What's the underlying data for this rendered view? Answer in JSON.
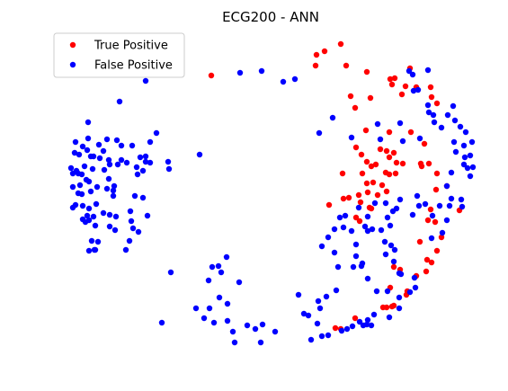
{
  "chart_data": {
    "type": "scatter",
    "title": "ECG200 - ANN",
    "xlabel": "",
    "ylabel": "",
    "axes_visible": false,
    "grid": false,
    "legend_position": "top-left",
    "series": [
      {
        "name": "True Positive",
        "color": "#ff0000",
        "points": [
          [
            235,
            84
          ],
          [
            352,
            61
          ],
          [
            361,
            57
          ],
          [
            379,
            49
          ],
          [
            351,
            73
          ],
          [
            385,
            73
          ],
          [
            408,
            80
          ],
          [
            434,
            88
          ],
          [
            439,
            87
          ],
          [
            436,
            94
          ],
          [
            456,
            76
          ],
          [
            451,
            96
          ],
          [
            463,
            97
          ],
          [
            479,
            97
          ],
          [
            390,
            107
          ],
          [
            412,
            109
          ],
          [
            447,
            105
          ],
          [
            480,
            108
          ],
          [
            486,
            115
          ],
          [
            395,
            120
          ],
          [
            407,
            145
          ],
          [
            396,
            164
          ],
          [
            433,
            147
          ],
          [
            457,
            147
          ],
          [
            472,
            160
          ],
          [
            423,
            166
          ],
          [
            402,
            172
          ],
          [
            430,
            168
          ],
          [
            408,
            180
          ],
          [
            418,
            183
          ],
          [
            413,
            185
          ],
          [
            429,
            192
          ],
          [
            433,
            175
          ],
          [
            438,
            170
          ],
          [
            441,
            181
          ],
          [
            440,
            193
          ],
          [
            433,
            194
          ],
          [
            448,
            182
          ],
          [
            381,
            193
          ],
          [
            403,
            193
          ],
          [
            408,
            204
          ],
          [
            415,
            203
          ],
          [
            409,
            214
          ],
          [
            420,
            217
          ],
          [
            430,
            213
          ],
          [
            399,
            217
          ],
          [
            382,
            221
          ],
          [
            388,
            220
          ],
          [
            401,
            225
          ],
          [
            413,
            232
          ],
          [
            425,
            206
          ],
          [
            411,
            231
          ],
          [
            468,
            182
          ],
          [
            477,
            182
          ],
          [
            486,
            193
          ],
          [
            485,
            211
          ],
          [
            497,
            207
          ],
          [
            511,
            234
          ],
          [
            479,
            233
          ],
          [
            476,
            245
          ],
          [
            484,
            247
          ],
          [
            491,
            264
          ],
          [
            467,
            269
          ],
          [
            486,
            279
          ],
          [
            475,
            289
          ],
          [
            480,
            292
          ],
          [
            438,
            297
          ],
          [
            445,
            300
          ],
          [
            463,
            307
          ],
          [
            474,
            302
          ],
          [
            434,
            320
          ],
          [
            453,
            324
          ],
          [
            452,
            328
          ],
          [
            438,
            340
          ],
          [
            426,
            342
          ],
          [
            430,
            342
          ],
          [
            436,
            341
          ],
          [
            395,
            354
          ],
          [
            373,
            365
          ],
          [
            379,
            366
          ],
          [
            366,
            228
          ],
          [
            396,
            242
          ],
          [
            400,
            246
          ],
          [
            469,
            185
          ]
        ]
      },
      {
        "name": "False Positive",
        "color": "#0000ff",
        "points": [
          [
            98,
            136
          ],
          [
            84,
            158
          ],
          [
            98,
            154
          ],
          [
            92,
            163
          ],
          [
            83,
            170
          ],
          [
            97,
            167
          ],
          [
            88,
            172
          ],
          [
            101,
            174
          ],
          [
            104,
            174
          ],
          [
            110,
            161
          ],
          [
            103,
            188
          ],
          [
            87,
            193
          ],
          [
            91,
            194
          ],
          [
            94,
            185
          ],
          [
            79,
            187
          ],
          [
            81,
            193
          ],
          [
            85,
            190
          ],
          [
            81,
            208
          ],
          [
            99,
            202
          ],
          [
            89,
            206
          ],
          [
            96,
            200
          ],
          [
            108,
            208
          ],
          [
            101,
            213
          ],
          [
            87,
            215
          ],
          [
            91,
            216
          ],
          [
            84,
            228
          ],
          [
            81,
            231
          ],
          [
            92,
            229
          ],
          [
            99,
            232
          ],
          [
            107,
            227
          ],
          [
            97,
            240
          ],
          [
            104,
            241
          ],
          [
            99,
            245
          ],
          [
            92,
            244
          ],
          [
            95,
            247
          ],
          [
            106,
            251
          ],
          [
            115,
            237
          ],
          [
            122,
            239
          ],
          [
            129,
            241
          ],
          [
            102,
            268
          ],
          [
            109,
            269
          ],
          [
            106,
            278
          ],
          [
            99,
            279
          ],
          [
            105,
            278
          ],
          [
            122,
            252
          ],
          [
            128,
            256
          ],
          [
            140,
            278
          ],
          [
            148,
            254
          ],
          [
            144,
            268
          ],
          [
            146,
            246
          ],
          [
            154,
            258
          ],
          [
            164,
            240
          ],
          [
            159,
            220
          ],
          [
            150,
            218
          ],
          [
            145,
            235
          ],
          [
            126,
            218
          ],
          [
            126,
            212
          ],
          [
            119,
            210
          ],
          [
            127,
            207
          ],
          [
            121,
            199
          ],
          [
            116,
            189
          ],
          [
            122,
            183
          ],
          [
            131,
            183
          ],
          [
            135,
            178
          ],
          [
            121,
            178
          ],
          [
            111,
            176
          ],
          [
            115,
            168
          ],
          [
            119,
            155
          ],
          [
            130,
            156
          ],
          [
            135,
            162
          ],
          [
            141,
            181
          ],
          [
            147,
            162
          ],
          [
            156,
            175
          ],
          [
            152,
            186
          ],
          [
            159,
            190
          ],
          [
            153,
            194
          ],
          [
            162,
            180
          ],
          [
            167,
            181
          ],
          [
            174,
            148
          ],
          [
            167,
            158
          ],
          [
            162,
            174
          ],
          [
            187,
            180
          ],
          [
            188,
            188
          ],
          [
            222,
            172
          ],
          [
            133,
            113
          ],
          [
            162,
            90
          ],
          [
            267,
            81
          ],
          [
            291,
            79
          ],
          [
            315,
            91
          ],
          [
            328,
            88
          ],
          [
            370,
            131
          ],
          [
            355,
            148
          ],
          [
            391,
            153
          ],
          [
            420,
            138
          ],
          [
            423,
            155
          ],
          [
            445,
            137
          ],
          [
            448,
            157
          ],
          [
            467,
            154
          ],
          [
            477,
            125
          ],
          [
            455,
            79
          ],
          [
            476,
            78
          ],
          [
            465,
            100
          ],
          [
            476,
            117
          ],
          [
            460,
            101
          ],
          [
            482,
            128
          ],
          [
            498,
            128
          ],
          [
            483,
            136
          ],
          [
            491,
            142
          ],
          [
            504,
            118
          ],
          [
            506,
            134
          ],
          [
            512,
            141
          ],
          [
            518,
            147
          ],
          [
            505,
            158
          ],
          [
            516,
            162
          ],
          [
            525,
            158
          ],
          [
            523,
            173
          ],
          [
            526,
            186
          ],
          [
            516,
            183
          ],
          [
            520,
            187
          ],
          [
            523,
            196
          ],
          [
            507,
            169
          ],
          [
            517,
            175
          ],
          [
            502,
            192
          ],
          [
            497,
            207
          ],
          [
            502,
            221
          ],
          [
            513,
            222
          ],
          [
            514,
            230
          ],
          [
            500,
            229
          ],
          [
            489,
            229
          ],
          [
            481,
            240
          ],
          [
            473,
            227
          ],
          [
            464,
            218
          ],
          [
            466,
            229
          ],
          [
            497,
            245
          ],
          [
            492,
            259
          ],
          [
            480,
            265
          ],
          [
            459,
            239
          ],
          [
            445,
            222
          ],
          [
            437,
            235
          ],
          [
            417,
            226
          ],
          [
            429,
            226
          ],
          [
            431,
            242
          ],
          [
            441,
            232
          ],
          [
            434,
            251
          ],
          [
            424,
            256
          ],
          [
            428,
            269
          ],
          [
            409,
            241
          ],
          [
            399,
            231
          ],
          [
            384,
            240
          ],
          [
            378,
            242
          ],
          [
            372,
            255
          ],
          [
            358,
            274
          ],
          [
            382,
            253
          ],
          [
            391,
            257
          ],
          [
            406,
            252
          ],
          [
            396,
            272
          ],
          [
            409,
            257
          ],
          [
            393,
            297
          ],
          [
            396,
            285
          ],
          [
            403,
            293
          ],
          [
            435,
            273
          ],
          [
            439,
            278
          ],
          [
            429,
            283
          ],
          [
            438,
            291
          ],
          [
            444,
            304
          ],
          [
            461,
            309
          ],
          [
            462,
            320
          ],
          [
            456,
            325
          ],
          [
            444,
            331
          ],
          [
            444,
            343
          ],
          [
            433,
            353
          ],
          [
            416,
            350
          ],
          [
            404,
            362
          ],
          [
            408,
            361
          ],
          [
            413,
            362
          ],
          [
            400,
            358
          ],
          [
            392,
            363
          ],
          [
            380,
            368
          ],
          [
            386,
            366
          ],
          [
            365,
            373
          ],
          [
            358,
            374
          ],
          [
            346,
            378
          ],
          [
            338,
            349
          ],
          [
            343,
            351
          ],
          [
            332,
            328
          ],
          [
            354,
            335
          ],
          [
            356,
            343
          ],
          [
            374,
            323
          ],
          [
            363,
            330
          ],
          [
            353,
            360
          ],
          [
            306,
            369
          ],
          [
            292,
            361
          ],
          [
            284,
            366
          ],
          [
            290,
            381
          ],
          [
            275,
            362
          ],
          [
            259,
            369
          ],
          [
            261,
            381
          ],
          [
            253,
            357
          ],
          [
            238,
            359
          ],
          [
            233,
            343
          ],
          [
            227,
            354
          ],
          [
            232,
            312
          ],
          [
            236,
            297
          ],
          [
            243,
            296
          ],
          [
            246,
            303
          ],
          [
            252,
            286
          ],
          [
            266,
            314
          ],
          [
            253,
            338
          ],
          [
            244,
            331
          ],
          [
            218,
            343
          ],
          [
            190,
            303
          ],
          [
            180,
            359
          ],
          [
            409,
            356
          ],
          [
            409,
            310
          ],
          [
            402,
            296
          ],
          [
            419,
            324
          ],
          [
            431,
            324
          ],
          [
            446,
            305
          ],
          [
            414,
            255
          ],
          [
            376,
            297
          ],
          [
            372,
            281
          ],
          [
            365,
            264
          ],
          [
            459,
            83
          ]
        ]
      }
    ]
  }
}
